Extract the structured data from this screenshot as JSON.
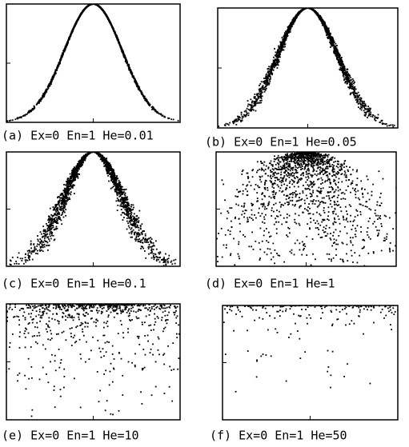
{
  "panels": [
    {
      "caption": "(a) Ex=0 En=1 He=0.01",
      "ex": 0,
      "en": 1,
      "he": 0.01
    },
    {
      "caption": "(b) Ex=0 En=1 He=0.05",
      "ex": 0,
      "en": 1,
      "he": 0.05
    },
    {
      "caption": "(c) Ex=0 En=1 He=0.1",
      "ex": 0,
      "en": 1,
      "he": 0.1
    },
    {
      "caption": "(d) Ex=0 En=1 He=1",
      "ex": 0,
      "en": 1,
      "he": 1
    },
    {
      "caption": "(e) Ex=0 En=1 He=10",
      "ex": 0,
      "en": 1,
      "he": 10
    },
    {
      "caption": "(f) Ex=0 En=1 He=50",
      "ex": 0,
      "en": 1,
      "he": 50
    }
  ]
}
